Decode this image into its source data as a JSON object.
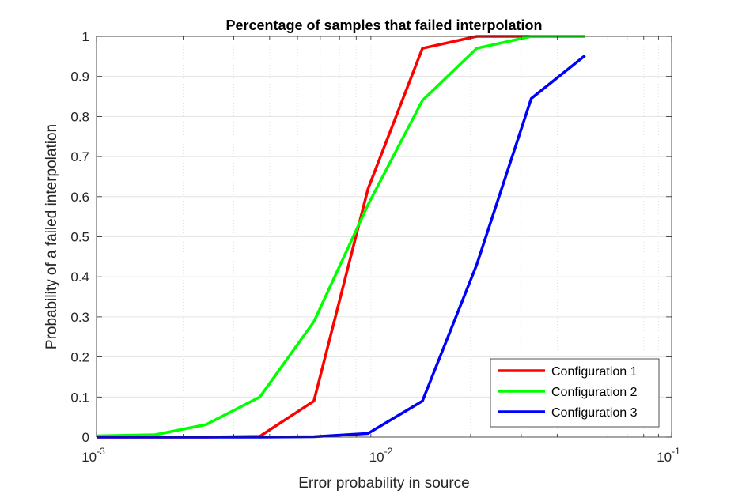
{
  "chart_data": {
    "type": "line",
    "title": "Percentage of samples that failed interpolation",
    "xlabel": "Error probability in source",
    "ylabel": "Probability of a failed interpolation",
    "xscale": "log",
    "xlim": [
      0.001,
      0.1
    ],
    "ylim": [
      0,
      1
    ],
    "grid": true,
    "minor_grid": true,
    "legend_position": "bottom-right",
    "x_ticks": [
      {
        "base": "10",
        "exp": "-3",
        "value": 0.001
      },
      {
        "base": "10",
        "exp": "-2",
        "value": 0.01
      },
      {
        "base": "10",
        "exp": "-1",
        "value": 0.1
      }
    ],
    "y_ticks": [
      "0",
      "0.1",
      "0.2",
      "0.3",
      "0.4",
      "0.5",
      "0.6",
      "0.7",
      "0.8",
      "0.9",
      "1"
    ],
    "series": [
      {
        "name": "Configuration 1",
        "color": "#ff0000",
        "x": [
          0.001,
          0.0016,
          0.0024,
          0.0037,
          0.0057,
          0.0088,
          0.0136,
          0.021,
          0.0325,
          0.05
        ],
        "y": [
          0.0,
          0.0,
          0.0,
          0.002,
          0.09,
          0.62,
          0.97,
          1.0,
          1.0,
          1.0
        ]
      },
      {
        "name": "Configuration 2",
        "color": "#00ff00",
        "x": [
          0.001,
          0.0016,
          0.0024,
          0.0037,
          0.0057,
          0.0088,
          0.0136,
          0.021,
          0.0325,
          0.05
        ],
        "y": [
          0.003,
          0.006,
          0.031,
          0.1,
          0.288,
          0.58,
          0.84,
          0.97,
          1.0,
          1.0
        ]
      },
      {
        "name": "Configuration 3",
        "color": "#0000ff",
        "x": [
          0.001,
          0.0016,
          0.0024,
          0.0037,
          0.0057,
          0.0088,
          0.0136,
          0.021,
          0.0325,
          0.05
        ],
        "y": [
          0.0,
          0.0,
          0.0,
          0.0,
          0.001,
          0.009,
          0.09,
          0.43,
          0.845,
          0.952
        ]
      }
    ]
  }
}
